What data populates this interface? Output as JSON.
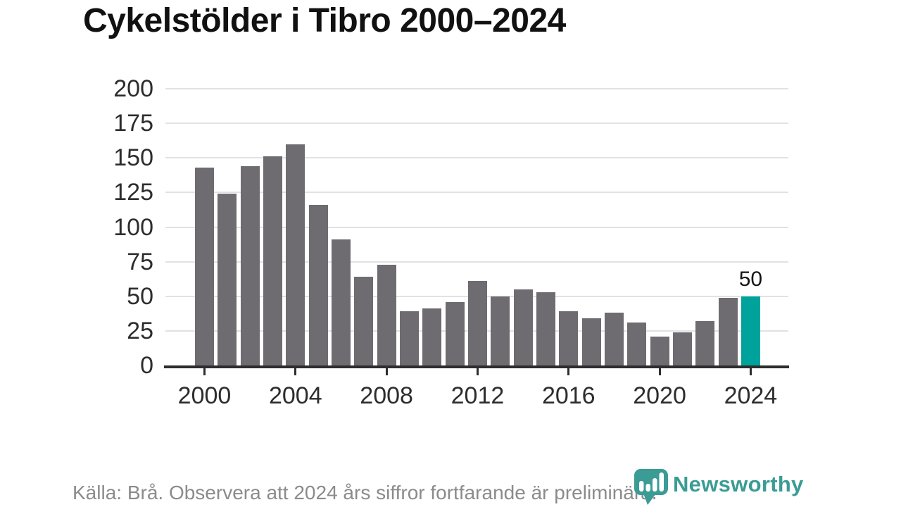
{
  "title": "Cykelstölder i Tibro 2000–2024",
  "chart_data": {
    "type": "bar",
    "title": "Cykelstölder i Tibro 2000–2024",
    "x": [
      2000,
      2001,
      2002,
      2003,
      2004,
      2005,
      2006,
      2007,
      2008,
      2009,
      2010,
      2011,
      2012,
      2013,
      2014,
      2015,
      2016,
      2017,
      2018,
      2019,
      2020,
      2021,
      2022,
      2023,
      2024
    ],
    "values": [
      143,
      124,
      144,
      151,
      160,
      116,
      91,
      64,
      73,
      39,
      41,
      46,
      61,
      50,
      55,
      53,
      39,
      34,
      38,
      31,
      21,
      24,
      32,
      49,
      50
    ],
    "ylim": [
      0,
      200
    ],
    "yticks": [
      0,
      25,
      50,
      75,
      100,
      125,
      150,
      175,
      200
    ],
    "xticks": [
      2000,
      2004,
      2008,
      2012,
      2016,
      2020,
      2024
    ],
    "grid": "horizontal",
    "xlabel": "",
    "ylabel": "",
    "bar_color": "#6e6b71",
    "highlight_year": 2024,
    "highlight_color": "#00a39b",
    "highlight_label": "50"
  },
  "footer": {
    "source": "Källa: Brå. Observera att 2024 års siffror fortfarande är preliminära."
  },
  "logo": {
    "text": "Newsworthy",
    "color": "#3a9c94"
  }
}
